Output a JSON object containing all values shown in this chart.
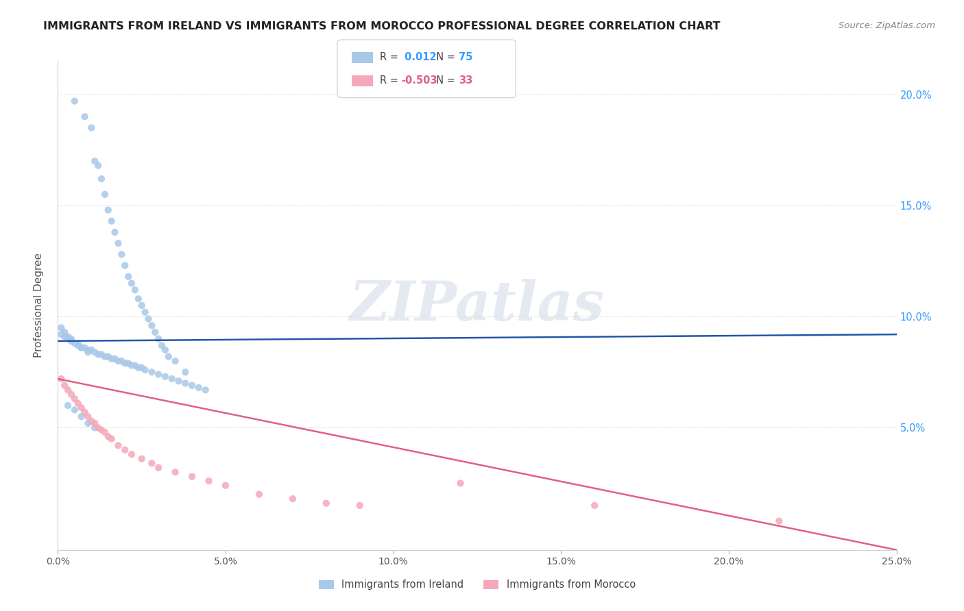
{
  "title": "IMMIGRANTS FROM IRELAND VS IMMIGRANTS FROM MOROCCO PROFESSIONAL DEGREE CORRELATION CHART",
  "source": "Source: ZipAtlas.com",
  "ylabel": "Professional Degree",
  "watermark": "ZIPatlas",
  "legend_ireland": "Immigrants from Ireland",
  "legend_morocco": "Immigrants from Morocco",
  "r_ireland": 0.012,
  "n_ireland": 75,
  "r_morocco": -0.503,
  "n_morocco": 33,
  "color_ireland": "#a8c8e8",
  "color_morocco": "#f4a8b8",
  "line_color_ireland": "#2255aa",
  "line_color_morocco": "#e06080",
  "xlim": [
    0.0,
    0.25
  ],
  "ylim": [
    -0.005,
    0.215
  ],
  "xticks": [
    0.0,
    0.05,
    0.1,
    0.15,
    0.2,
    0.25
  ],
  "yticks_right": [
    0.05,
    0.1,
    0.15,
    0.2
  ],
  "xticklabels": [
    "0.0%",
    "5.0%",
    "10.0%",
    "15.0%",
    "20.0%",
    "25.0%"
  ],
  "yticklabels_right": [
    "5.0%",
    "10.0%",
    "15.0%",
    "20.0%"
  ],
  "ireland_x": [
    0.005,
    0.008,
    0.01,
    0.011,
    0.012,
    0.013,
    0.014,
    0.015,
    0.016,
    0.017,
    0.018,
    0.019,
    0.02,
    0.021,
    0.022,
    0.023,
    0.024,
    0.025,
    0.026,
    0.027,
    0.028,
    0.029,
    0.03,
    0.031,
    0.032,
    0.001,
    0.002,
    0.003,
    0.004,
    0.006,
    0.007,
    0.009,
    0.033,
    0.035,
    0.038,
    0.001,
    0.002,
    0.003,
    0.004,
    0.005,
    0.006,
    0.007,
    0.008,
    0.009,
    0.01,
    0.011,
    0.012,
    0.013,
    0.014,
    0.015,
    0.016,
    0.017,
    0.018,
    0.019,
    0.02,
    0.021,
    0.022,
    0.023,
    0.024,
    0.025,
    0.026,
    0.028,
    0.03,
    0.032,
    0.034,
    0.036,
    0.038,
    0.04,
    0.042,
    0.044,
    0.003,
    0.005,
    0.007,
    0.009,
    0.011
  ],
  "ireland_y": [
    0.197,
    0.19,
    0.185,
    0.17,
    0.168,
    0.162,
    0.155,
    0.148,
    0.143,
    0.138,
    0.133,
    0.128,
    0.123,
    0.118,
    0.115,
    0.112,
    0.108,
    0.105,
    0.102,
    0.099,
    0.096,
    0.093,
    0.09,
    0.087,
    0.085,
    0.095,
    0.093,
    0.091,
    0.09,
    0.088,
    0.086,
    0.084,
    0.082,
    0.08,
    0.075,
    0.092,
    0.091,
    0.09,
    0.089,
    0.088,
    0.087,
    0.086,
    0.086,
    0.085,
    0.085,
    0.084,
    0.083,
    0.083,
    0.082,
    0.082,
    0.081,
    0.081,
    0.08,
    0.08,
    0.079,
    0.079,
    0.078,
    0.078,
    0.077,
    0.077,
    0.076,
    0.075,
    0.074,
    0.073,
    0.072,
    0.071,
    0.07,
    0.069,
    0.068,
    0.067,
    0.06,
    0.058,
    0.055,
    0.052,
    0.05
  ],
  "morocco_x": [
    0.001,
    0.002,
    0.003,
    0.004,
    0.005,
    0.006,
    0.007,
    0.008,
    0.009,
    0.01,
    0.011,
    0.012,
    0.013,
    0.014,
    0.015,
    0.016,
    0.018,
    0.02,
    0.022,
    0.025,
    0.028,
    0.03,
    0.035,
    0.04,
    0.045,
    0.05,
    0.06,
    0.07,
    0.08,
    0.09,
    0.12,
    0.16,
    0.215
  ],
  "morocco_y": [
    0.072,
    0.069,
    0.067,
    0.065,
    0.063,
    0.061,
    0.059,
    0.057,
    0.055,
    0.053,
    0.052,
    0.05,
    0.049,
    0.048,
    0.046,
    0.045,
    0.042,
    0.04,
    0.038,
    0.036,
    0.034,
    0.032,
    0.03,
    0.028,
    0.026,
    0.024,
    0.02,
    0.018,
    0.016,
    0.015,
    0.025,
    0.015,
    0.008
  ],
  "ireland_line_x": [
    0.0,
    0.25
  ],
  "ireland_line_y": [
    0.089,
    0.092
  ],
  "morocco_line_x": [
    0.0,
    0.25
  ],
  "morocco_line_y": [
    0.072,
    -0.005
  ]
}
